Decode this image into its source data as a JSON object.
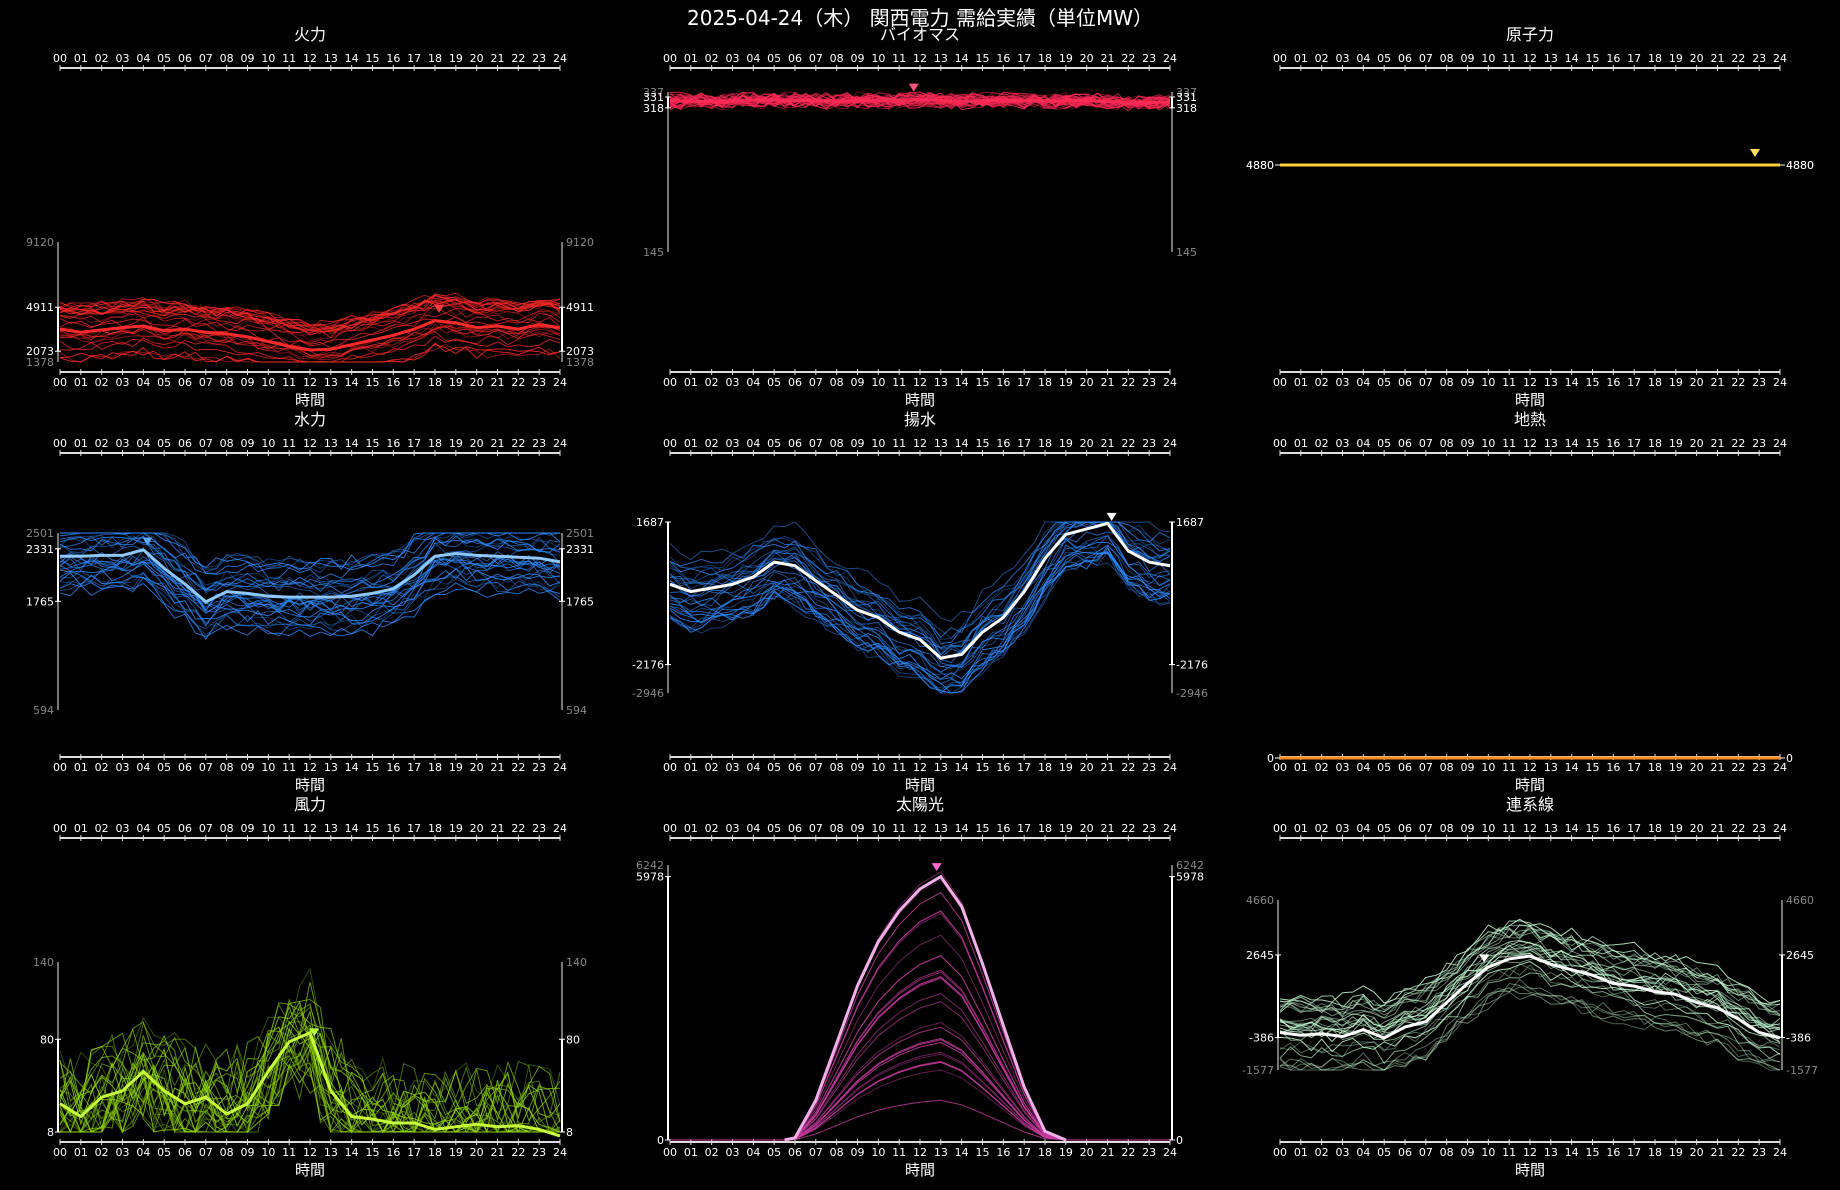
{
  "title": "2025-04-24（木） 関西電力 需給実績（単位MW）",
  "x_ticks": [
    "00",
    "01",
    "02",
    "03",
    "04",
    "05",
    "06",
    "07",
    "08",
    "09",
    "10",
    "11",
    "12",
    "13",
    "14",
    "15",
    "16",
    "17",
    "18",
    "19",
    "20",
    "21",
    "22",
    "23",
    "24"
  ],
  "x_label": "時間",
  "chart_data": [
    {
      "type": "line",
      "name": "火力",
      "color": "#ff2a2a",
      "marker": "#ff3b3b",
      "ylim": [
        1378,
        9120
      ],
      "y_bold_ticks": [
        4911,
        2073
      ],
      "y_gray_ticks": [
        9120,
        1378
      ],
      "peak_x": 18.2,
      "highlight": {
        "x": [
          0,
          1,
          2,
          3,
          4,
          5,
          6,
          7,
          8,
          9,
          10,
          11,
          12,
          13,
          14,
          15,
          16,
          17,
          18,
          19,
          20,
          21,
          22,
          23,
          24
        ],
        "y": [
          3500,
          3300,
          3450,
          3600,
          3700,
          3400,
          3500,
          3300,
          3200,
          3000,
          2700,
          2400,
          2150,
          2200,
          2500,
          2800,
          3100,
          3500,
          4050,
          3900,
          3600,
          3700,
          3500,
          3800,
          3600
        ]
      }
    },
    {
      "type": "line",
      "name": "バイオマス",
      "color": "#ff2a55",
      "marker": "#ff5577",
      "ylim": [
        145,
        337
      ],
      "y_bold_ticks": [
        331,
        318
      ],
      "y_gray_ticks": [
        337,
        145
      ],
      "peak_x": 11.7,
      "highlight": {
        "x": [
          0,
          2,
          4,
          6,
          8,
          10,
          12,
          14,
          16,
          18,
          20,
          22,
          24
        ],
        "y": [
          326,
          326,
          327,
          327,
          326,
          327,
          328,
          326,
          327,
          326,
          327,
          324,
          325
        ]
      }
    },
    {
      "type": "line",
      "name": "原子力",
      "color": "#ffd23c",
      "marker": "#ffe066",
      "ylim": [
        0,
        4880
      ],
      "y_bold_ticks": [
        4880
      ],
      "y_gray_ticks": [
        4880
      ],
      "peak_x": 22.8,
      "highlight": {
        "x": [
          0,
          24
        ],
        "y": [
          4880,
          4880
        ]
      }
    },
    {
      "type": "line",
      "name": "水力",
      "color": "#2f8cff",
      "marker": "#5aaaff",
      "ylim": [
        594,
        2501
      ],
      "y_bold_ticks": [
        2331,
        1765
      ],
      "y_gray_ticks": [
        2501,
        594
      ],
      "peak_x": 4.2,
      "highlight": {
        "x": [
          0,
          1,
          2,
          3,
          4,
          5,
          6,
          7,
          8,
          9,
          10,
          11,
          12,
          13,
          14,
          15,
          16,
          17,
          18,
          19,
          20,
          21,
          22,
          23,
          24
        ],
        "y": [
          2250,
          2250,
          2260,
          2260,
          2320,
          2120,
          1950,
          1760,
          1870,
          1850,
          1820,
          1810,
          1810,
          1810,
          1820,
          1850,
          1900,
          2050,
          2250,
          2280,
          2260,
          2250,
          2240,
          2230,
          2190
        ]
      }
    },
    {
      "type": "line",
      "name": "揚水",
      "color": "#2f8cff",
      "marker": "#ffffff",
      "ylim": [
        -2946,
        1687
      ],
      "y_bold_ticks": [
        1687,
        -2176
      ],
      "y_gray_ticks": [
        -2946
      ],
      "peak_x": 21.2,
      "highlight": {
        "x": [
          0,
          1,
          2,
          3,
          4,
          5,
          6,
          7,
          8,
          9,
          10,
          11,
          12,
          13,
          14,
          15,
          16,
          17,
          18,
          19,
          20,
          21,
          22,
          23,
          24
        ],
        "y": [
          0,
          -200,
          -100,
          0,
          200,
          600,
          500,
          100,
          -300,
          -700,
          -900,
          -1300,
          -1500,
          -2000,
          -1900,
          -1300,
          -900,
          -200,
          700,
          1350,
          1500,
          1650,
          900,
          600,
          500
        ]
      }
    },
    {
      "type": "line",
      "name": "地熱",
      "color": "#ff8a1e",
      "marker": "#ff9933",
      "ylim": [
        0,
        1
      ],
      "y_bold_ticks": [
        0.0
      ],
      "y_gray_ticks": [],
      "peak_x": null,
      "highlight": {
        "x": [
          0,
          24
        ],
        "y": [
          0,
          0
        ]
      }
    },
    {
      "type": "line",
      "name": "風力",
      "color": "#8fd400",
      "marker": "#b4ff3c",
      "ylim": [
        8,
        140
      ],
      "y_bold_ticks": [
        80,
        8
      ],
      "y_gray_ticks": [
        140
      ],
      "peak_x": 12.2,
      "highlight": {
        "x": [
          0,
          1,
          2,
          3,
          4,
          5,
          6,
          7,
          8,
          9,
          10,
          11,
          12,
          13,
          14,
          15,
          16,
          17,
          18,
          19,
          20,
          21,
          22,
          23,
          24
        ],
        "y": [
          30,
          20,
          35,
          40,
          55,
          40,
          30,
          35,
          22,
          30,
          55,
          78,
          85,
          40,
          20,
          18,
          15,
          15,
          10,
          12,
          14,
          12,
          13,
          10,
          5
        ]
      }
    },
    {
      "type": "line",
      "name": "太陽光",
      "color": "#c83ca0",
      "marker": "#ff6ad5",
      "ylim": [
        0,
        6242
      ],
      "y_bold_ticks": [
        5978,
        0
      ],
      "y_gray_ticks": [
        6242
      ],
      "peak_x": 12.8,
      "highlight": {
        "x": [
          5.5,
          6,
          7,
          8,
          9,
          10,
          11,
          12,
          13,
          14,
          15,
          16,
          17,
          18,
          19
        ],
        "y": [
          0,
          50,
          900,
          2200,
          3500,
          4500,
          5200,
          5700,
          5978,
          5300,
          4000,
          2600,
          1200,
          200,
          0
        ]
      }
    },
    {
      "type": "line",
      "name": "連系線",
      "color": "#c8ffd8",
      "marker": "#ffffff",
      "ylim": [
        -1577,
        4660
      ],
      "y_bold_ticks": [
        2645,
        -386
      ],
      "y_gray_ticks": [
        4660,
        -1577
      ],
      "peak_x": 9.8,
      "highlight": {
        "x": [
          0,
          1,
          2,
          3,
          4,
          5,
          6,
          7,
          8,
          9,
          10,
          11,
          12,
          13,
          14,
          15,
          16,
          17,
          18,
          19,
          20,
          21,
          22,
          23,
          24
        ],
        "y": [
          -200,
          -300,
          -250,
          -350,
          -100,
          -400,
          0,
          200,
          900,
          1600,
          2200,
          2500,
          2600,
          2300,
          2100,
          1900,
          1600,
          1500,
          1300,
          1200,
          900,
          700,
          300,
          -200,
          -400
        ]
      }
    }
  ]
}
